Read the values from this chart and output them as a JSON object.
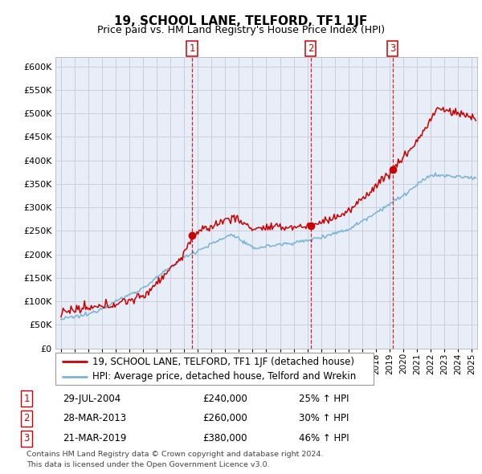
{
  "title": "19, SCHOOL LANE, TELFORD, TF1 1JF",
  "subtitle": "Price paid vs. HM Land Registry's House Price Index (HPI)",
  "legend_line1": "19, SCHOOL LANE, TELFORD, TF1 1JF (detached house)",
  "legend_line2": "HPI: Average price, detached house, Telford and Wrekin",
  "footer1": "Contains HM Land Registry data © Crown copyright and database right 2024.",
  "footer2": "This data is licensed under the Open Government Licence v3.0.",
  "sale_dates": [
    "29-JUL-2004",
    "28-MAR-2013",
    "21-MAR-2019"
  ],
  "sale_prices": [
    240000,
    260000,
    380000
  ],
  "sale_hpi_pct": [
    "25%",
    "30%",
    "46%"
  ],
  "sale_year_floats": [
    2004.58,
    2013.23,
    2019.22
  ],
  "ylim": [
    0,
    620000
  ],
  "yticks": [
    0,
    50000,
    100000,
    150000,
    200000,
    250000,
    300000,
    350000,
    400000,
    450000,
    500000,
    550000,
    600000
  ],
  "xlim_left": 1994.6,
  "xlim_right": 2025.4,
  "red_color": "#cc0000",
  "blue_color": "#7ab3d4",
  "grid_color": "#ccccdd",
  "background_color": "#e8eef8",
  "title_fontsize": 11,
  "subtitle_fontsize": 9,
  "tick_fontsize": 7.5,
  "legend_fontsize": 8.5
}
